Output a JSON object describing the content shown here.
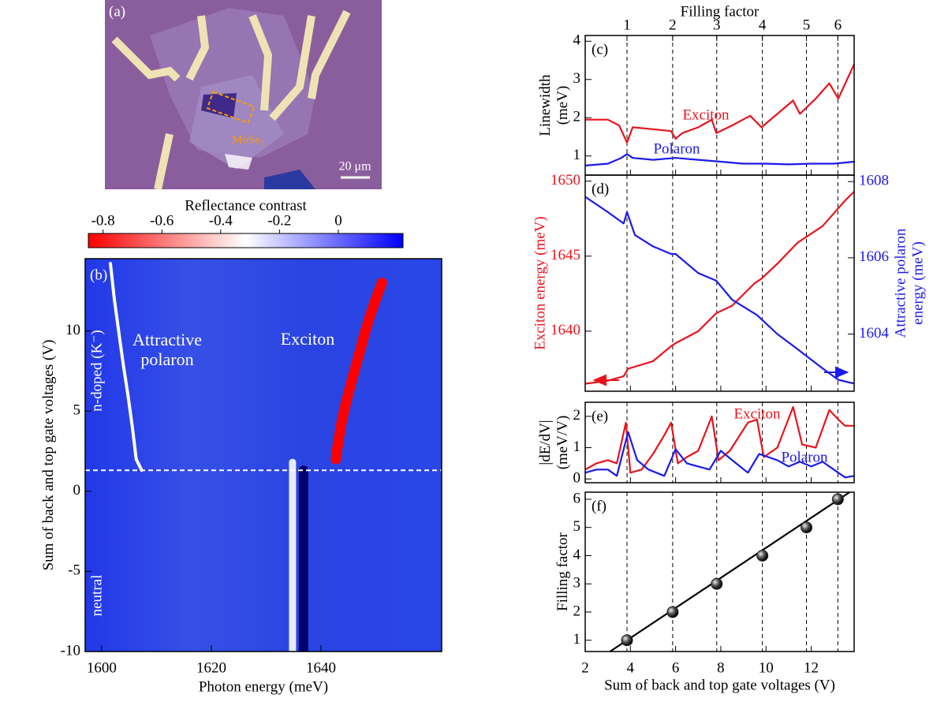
{
  "image": {
    "label": "(a)",
    "annotation": "MoSe₂",
    "scale_bar": "20 μm"
  },
  "chart_data": [
    {
      "type": "heatmap",
      "label": "(b)",
      "xlabel": "Photon energy (meV)",
      "ylabel": "Sum of back and top gate voltages (V)",
      "xlim": [
        1597,
        1662
      ],
      "xticks": [
        1600,
        1620,
        1640
      ],
      "ylim": [
        -10,
        14.5
      ],
      "yticks": [
        -10,
        -5,
        0,
        5,
        10
      ],
      "colorbar": {
        "title": "Reflectance contrast",
        "lim": [
          -0.85,
          0.22
        ],
        "ticks": [
          -0.8,
          -0.6,
          -0.4,
          -0.2,
          0
        ],
        "colors": [
          "#ff0000",
          "#ffffff",
          "#0000ff"
        ]
      },
      "threshold": 1.3,
      "annotations": [
        "Exciton",
        "Attractive",
        "polaron",
        "n-doped (K⁻)",
        "neutral"
      ],
      "traces": [
        {
          "color": "#e6eaff",
          "x": [
            1634.8,
            1634.8
          ],
          "y": [
            -10,
            1.8
          ]
        },
        {
          "color": "#00006e",
          "x": [
            1636.8,
            1636.8
          ],
          "y": [
            -10,
            1.3
          ]
        },
        {
          "color": "#ffffff",
          "x": [
            1601.6,
            1602.3,
            1603.1,
            1603.9,
            1604.8,
            1605.6,
            1606.3,
            1607.3
          ],
          "y": [
            14.2,
            12,
            10,
            8,
            6,
            4,
            2,
            1.3
          ]
        },
        {
          "color": "#ff0000",
          "x": [
            1642.7,
            1643.1,
            1643.6,
            1644.2,
            1644.9,
            1645.7,
            1646.5,
            1647.3,
            1648.1,
            1649.0,
            1650.0,
            1651.1
          ],
          "y": [
            2,
            3,
            4,
            5,
            6,
            7,
            8,
            9,
            10,
            11,
            12,
            13
          ]
        }
      ]
    },
    {
      "type": "line",
      "label": "(c)",
      "x2label": "Filling factor",
      "x2ticks": [
        {
          "value": 3.85,
          "label": "1"
        },
        {
          "value": 5.87,
          "label": "2"
        },
        {
          "value": 7.82,
          "label": "3"
        },
        {
          "value": 9.84,
          "label": "4"
        },
        {
          "value": 11.79,
          "label": "5"
        },
        {
          "value": 13.18,
          "label": "6"
        }
      ],
      "xlim": [
        2,
        13.9
      ],
      "ylim": [
        0.5,
        4.15
      ],
      "yticks": [
        1,
        2,
        3,
        4
      ],
      "ylabel": [
        "Linewidth",
        "(meV)"
      ],
      "series": [
        {
          "name": "Exciton",
          "color": "#e8141c",
          "x": [
            2,
            3,
            3.5,
            3.85,
            4.1,
            5,
            5.8,
            6,
            6.3,
            7,
            7.6,
            7.8,
            8.5,
            9.3,
            9.8,
            10.5,
            11.2,
            11.5,
            12.2,
            12.8,
            13.2,
            13.9
          ],
          "values": [
            1.95,
            1.95,
            1.8,
            1.35,
            1.75,
            1.7,
            1.65,
            1.45,
            1.6,
            1.75,
            1.95,
            1.6,
            1.8,
            2.05,
            1.75,
            2.1,
            2.45,
            2.1,
            2.5,
            2.9,
            2.5,
            3.4
          ]
        },
        {
          "name": "Polaron",
          "color": "#1a1aee",
          "x": [
            2,
            3,
            3.6,
            3.85,
            4.1,
            5,
            6,
            7,
            8,
            9,
            10,
            11,
            12,
            13,
            13.9
          ],
          "values": [
            0.75,
            0.8,
            0.95,
            1.05,
            0.95,
            0.9,
            0.95,
            0.9,
            0.85,
            0.8,
            0.8,
            0.78,
            0.8,
            0.8,
            0.85
          ]
        }
      ]
    },
    {
      "type": "line",
      "label": "(d)",
      "xlim": [
        2,
        13.9
      ],
      "ylim": [
        1636,
        1650.4
      ],
      "yticks": [
        1640,
        1645,
        1650
      ],
      "ylabel": [
        "Exciton energy (meV)"
      ],
      "ycolor": "#e8141c",
      "y2lim": [
        1602.5,
        1608.17
      ],
      "y2ticks": [
        1604,
        1606,
        1608
      ],
      "y2label": [
        "Attractive polaron",
        "energy (meV)"
      ],
      "y2color": "#1a1aee",
      "series": [
        {
          "color": "#e8141c",
          "x": [
            2,
            3,
            3.7,
            3.9,
            5,
            5.8,
            6,
            7,
            7.8,
            8.5,
            9.5,
            9.8,
            10.5,
            11.4,
            12.5,
            13.5,
            13.9
          ],
          "values": [
            1636.5,
            1636.7,
            1637,
            1637.5,
            1638,
            1639,
            1639.2,
            1640,
            1641.2,
            1641.7,
            1643.2,
            1643.5,
            1644.5,
            1645.9,
            1647,
            1648.7,
            1649.3
          ]
        },
        {
          "color": "#1a1aee",
          "axis": "y2",
          "x": [
            2,
            3,
            3.7,
            3.85,
            4.2,
            5,
            5.8,
            6,
            7,
            7.8,
            8.5,
            9.6,
            10.5,
            11.4,
            12.5,
            13.2,
            13.9
          ],
          "values": [
            1607.6,
            1607.2,
            1606.9,
            1607.2,
            1606.6,
            1606.3,
            1606.1,
            1606.1,
            1605.6,
            1605.4,
            1604.9,
            1604.5,
            1604,
            1603.6,
            1603.1,
            1602.8,
            1602.7
          ]
        }
      ]
    },
    {
      "type": "line",
      "label": "(e)",
      "xlim": [
        2,
        13.9
      ],
      "ylim": [
        -0.12,
        2.45
      ],
      "yticks": [
        0,
        1,
        2
      ],
      "ylabel": [
        "|dE/dV|",
        "(meV/V)"
      ],
      "series": [
        {
          "name": "Exciton",
          "color": "#e8141c",
          "x": [
            2,
            2.5,
            3,
            3.4,
            3.8,
            4,
            4.5,
            5,
            5.5,
            5.8,
            6.1,
            6.5,
            7,
            7.6,
            7.9,
            8.4,
            9.2,
            9.6,
            9.9,
            10.5,
            11.2,
            11.6,
            12.2,
            12.8,
            13.2,
            13.5,
            13.9
          ],
          "values": [
            0.3,
            0.5,
            0.6,
            0.5,
            1.8,
            0.2,
            0.3,
            0.8,
            1.4,
            1.8,
            0.5,
            0.7,
            0.9,
            2.0,
            0.6,
            0.9,
            1.8,
            1.9,
            0.7,
            1.0,
            2.3,
            1.1,
            1.0,
            2.2,
            1.9,
            1.7,
            1.7
          ]
        },
        {
          "name": "Polaron",
          "color": "#1a1aee",
          "x": [
            2,
            2.5,
            3,
            3.4,
            3.9,
            4.3,
            4.8,
            5.5,
            6,
            6.5,
            7,
            7.5,
            8,
            8.5,
            9.2,
            9.7,
            10.5,
            11,
            11.5,
            12,
            12.5,
            13,
            13.5,
            13.9
          ],
          "values": [
            0.2,
            0.3,
            0.3,
            0.1,
            1.5,
            0.6,
            0.3,
            0.1,
            0.95,
            0.5,
            0.4,
            0.3,
            0.9,
            0.6,
            0.2,
            0.8,
            0.6,
            0.4,
            0.55,
            0.4,
            0.55,
            0.3,
            0.05,
            0.1
          ]
        }
      ]
    },
    {
      "type": "scatter",
      "label": "(f)",
      "xlabel": "Sum of back and top gate voltages (V)",
      "xlim": [
        2,
        13.9
      ],
      "xticks": [
        2,
        4,
        6,
        8,
        10,
        12
      ],
      "ylim": [
        0.6,
        6.25
      ],
      "yticks": [
        1,
        2,
        3,
        4,
        5,
        6
      ],
      "ylabel": [
        "Filling factor"
      ],
      "series": [
        {
          "mode": "lines",
          "color": "#000000",
          "x": [
            3.1,
            13.7
          ],
          "values": [
            0.6,
            6.25
          ]
        },
        {
          "mode": "markers",
          "color": "#222222",
          "x": [
            3.85,
            5.87,
            7.82,
            9.84,
            11.79,
            13.18
          ],
          "values": [
            1,
            2,
            3,
            4,
            5,
            6
          ]
        }
      ]
    }
  ]
}
